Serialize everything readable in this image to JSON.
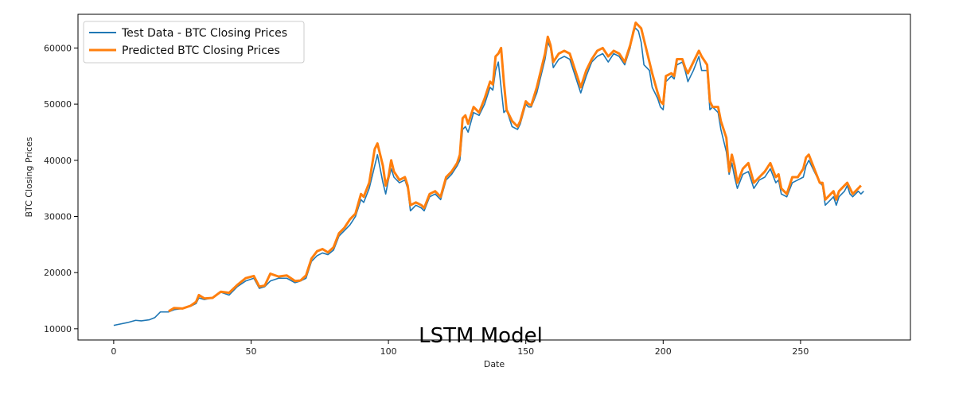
{
  "chart_data": {
    "type": "line",
    "title": "",
    "overlay_text": "LSTM Model",
    "xlabel": "Date",
    "ylabel": "BTC Closing Prices",
    "xlim": [
      -13,
      290
    ],
    "ylim": [
      8000,
      66000
    ],
    "x_ticks": [
      0,
      50,
      100,
      150,
      200,
      250
    ],
    "y_ticks": [
      10000,
      20000,
      30000,
      40000,
      50000,
      60000
    ],
    "grid": false,
    "legend_position": "top-left",
    "series": [
      {
        "name": "Test Data - BTC Closing Prices",
        "color": "#1f77b4",
        "points": [
          [
            0,
            10600
          ],
          [
            5,
            11100
          ],
          [
            8,
            11500
          ],
          [
            10,
            11400
          ],
          [
            13,
            11600
          ],
          [
            15,
            12000
          ],
          [
            17,
            13000
          ],
          [
            20,
            13000
          ],
          [
            22,
            13400
          ],
          [
            25,
            13600
          ],
          [
            28,
            14000
          ],
          [
            30,
            14500
          ],
          [
            31,
            15500
          ],
          [
            33,
            15200
          ],
          [
            36,
            15500
          ],
          [
            39,
            16500
          ],
          [
            42,
            16000
          ],
          [
            45,
            17500
          ],
          [
            48,
            18500
          ],
          [
            51,
            19000
          ],
          [
            53,
            17200
          ],
          [
            55,
            17500
          ],
          [
            57,
            18500
          ],
          [
            60,
            19000
          ],
          [
            63,
            19000
          ],
          [
            66,
            18200
          ],
          [
            68,
            18500
          ],
          [
            70,
            19000
          ],
          [
            72,
            22000
          ],
          [
            74,
            23000
          ],
          [
            76,
            23500
          ],
          [
            78,
            23200
          ],
          [
            80,
            24000
          ],
          [
            82,
            26500
          ],
          [
            84,
            27500
          ],
          [
            86,
            28500
          ],
          [
            88,
            30000
          ],
          [
            90,
            33000
          ],
          [
            91,
            32500
          ],
          [
            93,
            35000
          ],
          [
            95,
            39000
          ],
          [
            96,
            41000
          ],
          [
            98,
            36000
          ],
          [
            99,
            34000
          ],
          [
            100,
            36500
          ],
          [
            101,
            38500
          ],
          [
            102,
            37000
          ],
          [
            104,
            36000
          ],
          [
            106,
            36500
          ],
          [
            107,
            35000
          ],
          [
            108,
            31000
          ],
          [
            110,
            32000
          ],
          [
            112,
            31500
          ],
          [
            113,
            31000
          ],
          [
            115,
            33500
          ],
          [
            117,
            34000
          ],
          [
            119,
            33000
          ],
          [
            121,
            36500
          ],
          [
            123,
            37500
          ],
          [
            125,
            39000
          ],
          [
            126,
            40000
          ],
          [
            127,
            45500
          ],
          [
            128,
            46000
          ],
          [
            129,
            45000
          ],
          [
            131,
            48500
          ],
          [
            133,
            48000
          ],
          [
            135,
            50000
          ],
          [
            137,
            53000
          ],
          [
            138,
            52500
          ],
          [
            139,
            56000
          ],
          [
            140,
            57500
          ],
          [
            141,
            53000
          ],
          [
            142,
            48500
          ],
          [
            143,
            49000
          ],
          [
            145,
            46000
          ],
          [
            147,
            45500
          ],
          [
            148,
            46500
          ],
          [
            150,
            50000
          ],
          [
            151,
            49500
          ],
          [
            152,
            49500
          ],
          [
            154,
            52000
          ],
          [
            156,
            56000
          ],
          [
            157,
            58000
          ],
          [
            158,
            61000
          ],
          [
            159,
            60000
          ],
          [
            160,
            56500
          ],
          [
            162,
            58000
          ],
          [
            164,
            58500
          ],
          [
            166,
            58000
          ],
          [
            168,
            55000
          ],
          [
            170,
            52000
          ],
          [
            172,
            55000
          ],
          [
            174,
            57500
          ],
          [
            176,
            58500
          ],
          [
            178,
            59000
          ],
          [
            180,
            57500
          ],
          [
            182,
            59000
          ],
          [
            184,
            58500
          ],
          [
            186,
            57000
          ],
          [
            188,
            60000
          ],
          [
            189,
            63000
          ],
          [
            190,
            63500
          ],
          [
            191,
            63000
          ],
          [
            192,
            61000
          ],
          [
            193,
            57000
          ],
          [
            195,
            56000
          ],
          [
            196,
            53000
          ],
          [
            198,
            51000
          ],
          [
            199,
            49500
          ],
          [
            200,
            49000
          ],
          [
            201,
            54000
          ],
          [
            203,
            55000
          ],
          [
            204,
            54500
          ],
          [
            205,
            57000
          ],
          [
            207,
            57500
          ],
          [
            208,
            56000
          ],
          [
            209,
            54000
          ],
          [
            211,
            56000
          ],
          [
            213,
            58500
          ],
          [
            214,
            56000
          ],
          [
            216,
            56000
          ],
          [
            217,
            49000
          ],
          [
            218,
            49500
          ],
          [
            220,
            48500
          ],
          [
            221,
            45500
          ],
          [
            223,
            41500
          ],
          [
            224,
            37500
          ],
          [
            225,
            39500
          ],
          [
            226,
            37000
          ],
          [
            227,
            35000
          ],
          [
            229,
            37500
          ],
          [
            231,
            38000
          ],
          [
            233,
            35000
          ],
          [
            235,
            36500
          ],
          [
            237,
            37000
          ],
          [
            239,
            38500
          ],
          [
            241,
            36000
          ],
          [
            242,
            36500
          ],
          [
            243,
            34000
          ],
          [
            245,
            33500
          ],
          [
            247,
            36000
          ],
          [
            249,
            36500
          ],
          [
            251,
            37000
          ],
          [
            252,
            39000
          ],
          [
            253,
            40000
          ],
          [
            255,
            38000
          ],
          [
            257,
            36000
          ],
          [
            258,
            35500
          ],
          [
            259,
            32000
          ],
          [
            261,
            33000
          ],
          [
            262,
            33500
          ],
          [
            263,
            32000
          ],
          [
            264,
            33500
          ],
          [
            266,
            34500
          ],
          [
            267,
            35500
          ],
          [
            268,
            34000
          ],
          [
            269,
            33500
          ],
          [
            271,
            34500
          ],
          [
            272,
            34000
          ],
          [
            273,
            34500
          ]
        ]
      },
      {
        "name": "Predicted BTC Closing Prices",
        "color": "#ff7f0e",
        "points": [
          [
            20,
            13100
          ],
          [
            22,
            13700
          ],
          [
            25,
            13600
          ],
          [
            28,
            14100
          ],
          [
            30,
            14800
          ],
          [
            31,
            16000
          ],
          [
            33,
            15400
          ],
          [
            36,
            15500
          ],
          [
            39,
            16600
          ],
          [
            42,
            16400
          ],
          [
            45,
            17800
          ],
          [
            48,
            19000
          ],
          [
            51,
            19400
          ],
          [
            53,
            17500
          ],
          [
            55,
            17700
          ],
          [
            57,
            19800
          ],
          [
            60,
            19300
          ],
          [
            63,
            19500
          ],
          [
            66,
            18500
          ],
          [
            68,
            18600
          ],
          [
            70,
            19500
          ],
          [
            72,
            22500
          ],
          [
            74,
            23800
          ],
          [
            76,
            24200
          ],
          [
            78,
            23600
          ],
          [
            80,
            24500
          ],
          [
            82,
            27000
          ],
          [
            84,
            28000
          ],
          [
            86,
            29500
          ],
          [
            88,
            30500
          ],
          [
            90,
            34000
          ],
          [
            91,
            33500
          ],
          [
            93,
            36000
          ],
          [
            95,
            42000
          ],
          [
            96,
            43000
          ],
          [
            98,
            39000
          ],
          [
            99,
            35500
          ],
          [
            100,
            37000
          ],
          [
            101,
            40000
          ],
          [
            102,
            38000
          ],
          [
            104,
            36500
          ],
          [
            106,
            37000
          ],
          [
            107,
            35500
          ],
          [
            108,
            32000
          ],
          [
            110,
            32500
          ],
          [
            112,
            32000
          ],
          [
            113,
            31500
          ],
          [
            115,
            34000
          ],
          [
            117,
            34500
          ],
          [
            119,
            33500
          ],
          [
            121,
            37000
          ],
          [
            123,
            38000
          ],
          [
            125,
            39500
          ],
          [
            126,
            41000
          ],
          [
            127,
            47500
          ],
          [
            128,
            48000
          ],
          [
            129,
            46500
          ],
          [
            131,
            49500
          ],
          [
            133,
            48500
          ],
          [
            135,
            51000
          ],
          [
            137,
            54000
          ],
          [
            138,
            53500
          ],
          [
            139,
            58500
          ],
          [
            140,
            59000
          ],
          [
            141,
            60000
          ],
          [
            142,
            54000
          ],
          [
            143,
            49000
          ],
          [
            145,
            47000
          ],
          [
            147,
            46000
          ],
          [
            148,
            47000
          ],
          [
            150,
            50500
          ],
          [
            151,
            50000
          ],
          [
            152,
            49800
          ],
          [
            154,
            53000
          ],
          [
            156,
            57000
          ],
          [
            157,
            59000
          ],
          [
            158,
            62000
          ],
          [
            159,
            60500
          ],
          [
            160,
            57500
          ],
          [
            162,
            59000
          ],
          [
            164,
            59500
          ],
          [
            166,
            59000
          ],
          [
            168,
            56000
          ],
          [
            170,
            53000
          ],
          [
            172,
            56000
          ],
          [
            174,
            58000
          ],
          [
            176,
            59500
          ],
          [
            178,
            60000
          ],
          [
            180,
            58500
          ],
          [
            182,
            59500
          ],
          [
            184,
            59000
          ],
          [
            186,
            57500
          ],
          [
            188,
            60500
          ],
          [
            189,
            62500
          ],
          [
            190,
            64500
          ],
          [
            191,
            64000
          ],
          [
            192,
            63500
          ],
          [
            193,
            61500
          ],
          [
            195,
            57500
          ],
          [
            196,
            55500
          ],
          [
            198,
            52000
          ],
          [
            199,
            50500
          ],
          [
            200,
            50000
          ],
          [
            201,
            55000
          ],
          [
            203,
            55500
          ],
          [
            204,
            55000
          ],
          [
            205,
            58000
          ],
          [
            207,
            58000
          ],
          [
            208,
            56500
          ],
          [
            209,
            55500
          ],
          [
            211,
            57500
          ],
          [
            213,
            59500
          ],
          [
            214,
            58500
          ],
          [
            216,
            57000
          ],
          [
            217,
            50500
          ],
          [
            218,
            49500
          ],
          [
            220,
            49500
          ],
          [
            221,
            47000
          ],
          [
            223,
            44000
          ],
          [
            224,
            38000
          ],
          [
            225,
            41000
          ],
          [
            226,
            39000
          ],
          [
            227,
            36000
          ],
          [
            229,
            38500
          ],
          [
            231,
            39500
          ],
          [
            233,
            36000
          ],
          [
            235,
            37000
          ],
          [
            237,
            38000
          ],
          [
            239,
            39500
          ],
          [
            241,
            37000
          ],
          [
            242,
            37500
          ],
          [
            243,
            35000
          ],
          [
            245,
            34000
          ],
          [
            247,
            37000
          ],
          [
            249,
            37000
          ],
          [
            251,
            38500
          ],
          [
            252,
            40500
          ],
          [
            253,
            41000
          ],
          [
            255,
            38500
          ],
          [
            257,
            36000
          ],
          [
            258,
            36000
          ],
          [
            259,
            33000
          ],
          [
            261,
            34000
          ],
          [
            262,
            34500
          ],
          [
            263,
            33000
          ],
          [
            264,
            34500
          ],
          [
            266,
            35500
          ],
          [
            267,
            36000
          ],
          [
            268,
            35000
          ],
          [
            269,
            34000
          ],
          [
            271,
            35000
          ],
          [
            272,
            35500
          ]
        ]
      }
    ]
  }
}
